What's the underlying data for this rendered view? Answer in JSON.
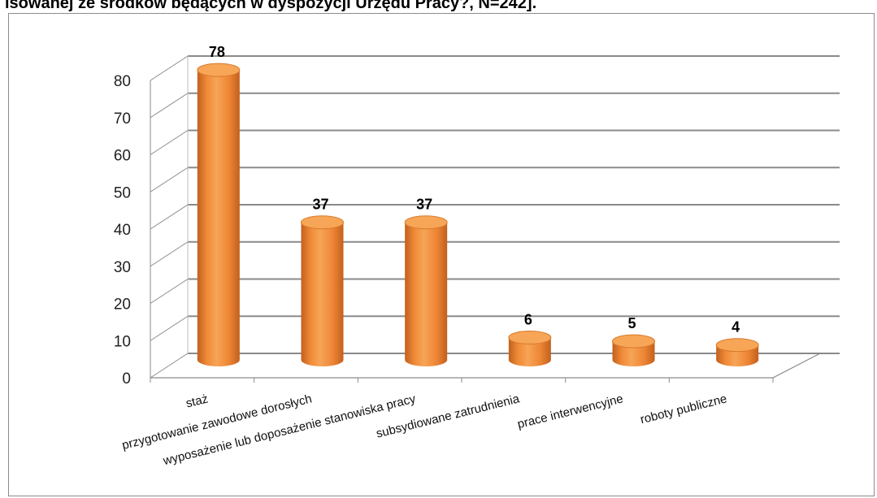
{
  "header": {
    "title": "isowanej ze środków będących w dyspozycji Urzędu Pracy?, N=242]."
  },
  "chart_data": {
    "type": "bar",
    "title": "",
    "xlabel": "",
    "ylabel": "",
    "ylim": [
      0,
      80
    ],
    "yticks": [
      0,
      10,
      20,
      30,
      40,
      50,
      60,
      70,
      80
    ],
    "grid": true,
    "style": "3d-cylinder",
    "bar_color": "#f28d3b",
    "bar_top_color": "#f7a657",
    "bar_dark_color": "#c2601d",
    "categories": [
      "staż",
      "przygotowanie zawodowe dorosłych",
      "wyposażenie lub doposażenie stanowiska pracy",
      "subsydiowane zatrudnienia",
      "prace interwencyjne",
      "roboty publiczne"
    ],
    "values": [
      78,
      37,
      37,
      6,
      5,
      4
    ]
  }
}
